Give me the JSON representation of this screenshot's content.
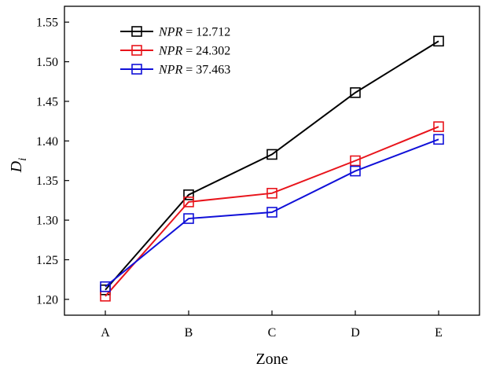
{
  "chart_data": {
    "type": "line",
    "title": "",
    "xlabel": "Zone",
    "ylabel_main": "D",
    "ylabel_sub": "i",
    "categories": [
      "A",
      "B",
      "C",
      "D",
      "E"
    ],
    "ylim": [
      1.18,
      1.57
    ],
    "yticks": [
      1.2,
      1.25,
      1.3,
      1.35,
      1.4,
      1.45,
      1.5,
      1.55
    ],
    "ytick_labels": [
      "1.20",
      "1.25",
      "1.30",
      "1.35",
      "1.40",
      "1.45",
      "1.50",
      "1.55"
    ],
    "grid": false,
    "legend_position": "top-left",
    "series": [
      {
        "name": "NPR = 12.712",
        "legend_var": "NPR",
        "legend_value": " = 12.712",
        "color": "#000000",
        "marker": "open-square",
        "values": [
          1.212,
          1.332,
          1.383,
          1.461,
          1.526
        ]
      },
      {
        "name": "NPR = 24.302",
        "legend_var": "NPR",
        "legend_value": " = 24.302",
        "color": "#e8141b",
        "marker": "open-square",
        "values": [
          1.204,
          1.323,
          1.334,
          1.375,
          1.418
        ]
      },
      {
        "name": "NPR = 37.463",
        "legend_var": "NPR",
        "legend_value": " = 37.463",
        "color": "#1010d8",
        "marker": "open-square",
        "values": [
          1.216,
          1.302,
          1.31,
          1.362,
          1.402
        ]
      }
    ]
  }
}
